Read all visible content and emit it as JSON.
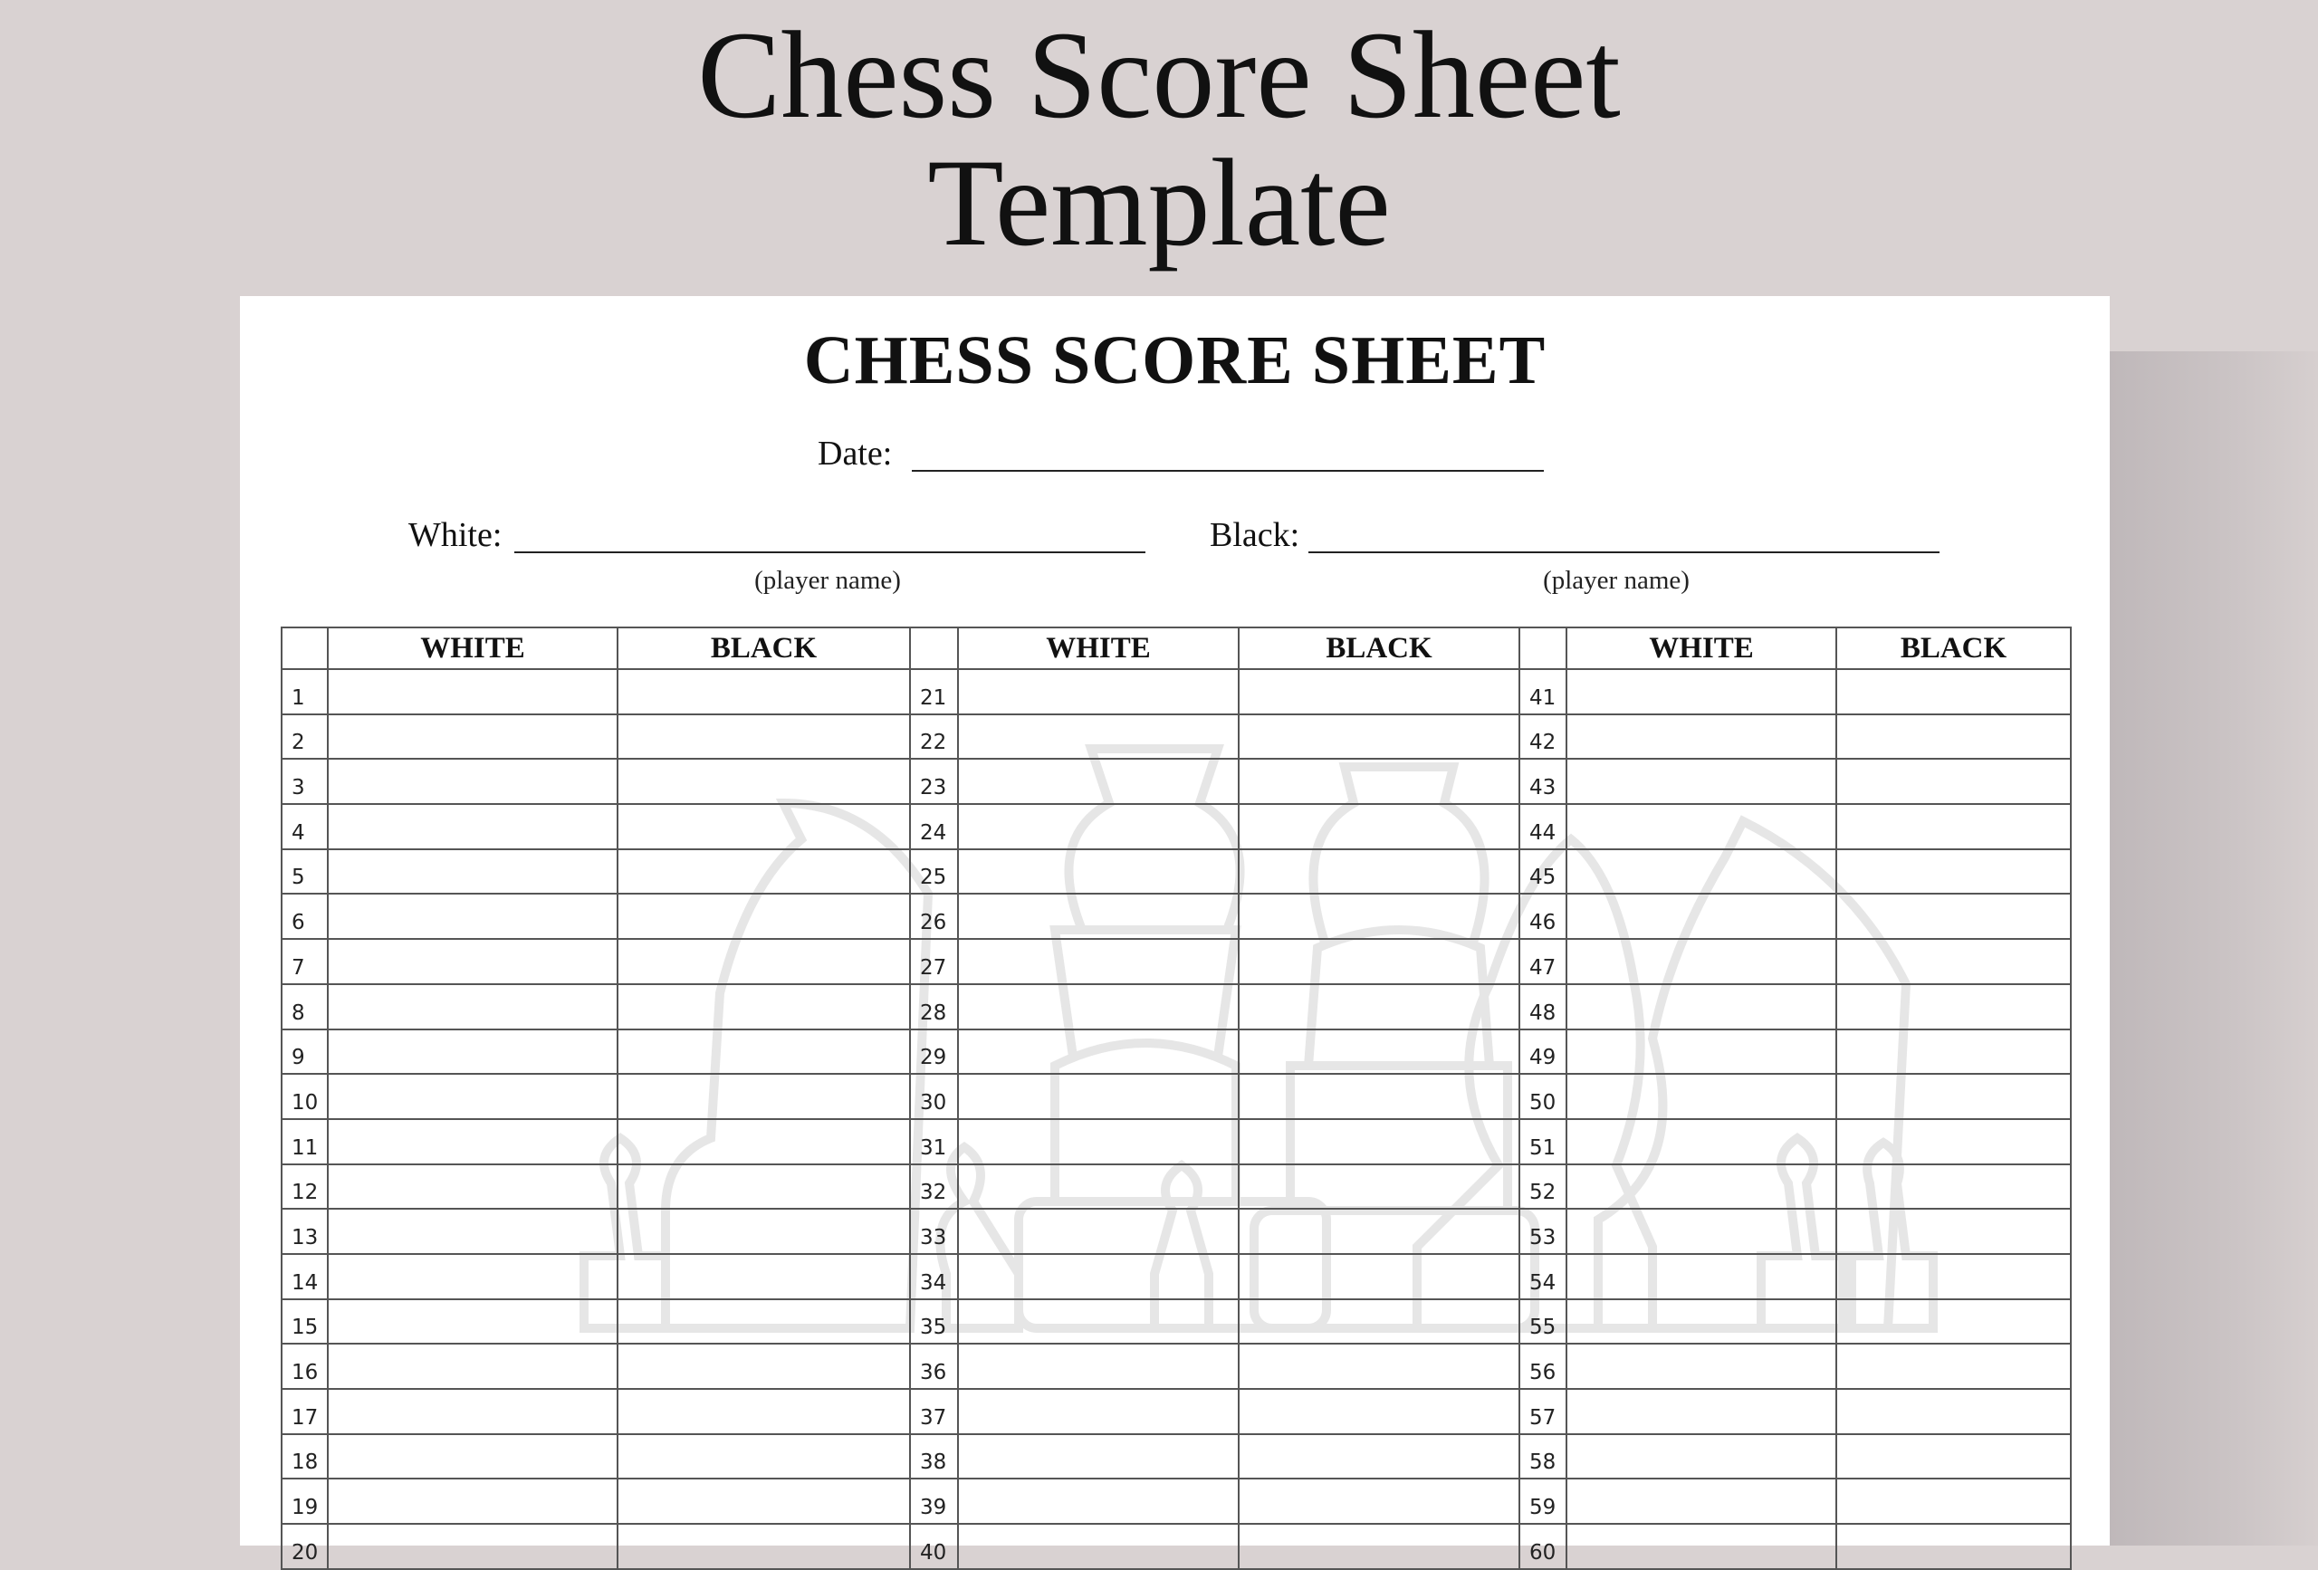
{
  "banner": {
    "line1": "Chess Score Sheet",
    "line2": "Template"
  },
  "sheet": {
    "title": "CHESS SCORE SHEET",
    "date_label": "Date:",
    "white_label": "White:",
    "black_label": "Black:",
    "player_name_hint": "(player name)",
    "columns": [
      "WHITE",
      "BLACK"
    ],
    "move_groups": [
      {
        "start": 1,
        "end": 20
      },
      {
        "start": 21,
        "end": 40
      },
      {
        "start": 41,
        "end": 60
      }
    ],
    "watermark": "chess-pieces-illustration"
  },
  "colors": {
    "background": "#d9d2d2",
    "paper": "#ffffff",
    "grid": "#555555"
  }
}
